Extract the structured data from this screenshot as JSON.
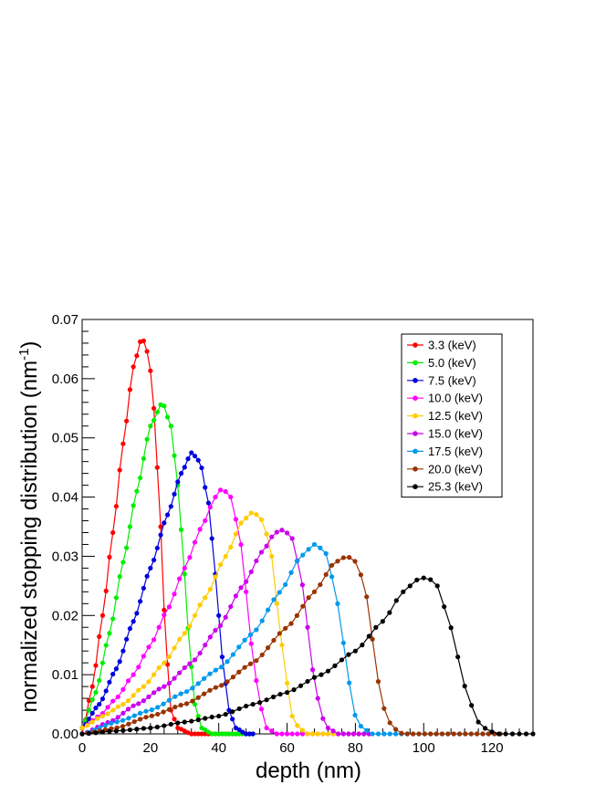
{
  "chart_data": {
    "type": "line",
    "title": "",
    "xlabel": "depth (nm)",
    "ylabel_main": "normalized stopping distribution (nm",
    "ylabel_sup": "-1",
    "ylabel_close": ")",
    "xlim": [
      0,
      132
    ],
    "ylim": [
      0,
      0.07
    ],
    "x_ticks": [
      0,
      20,
      40,
      60,
      80,
      100,
      120
    ],
    "y_ticks": [
      0,
      0.01,
      0.02,
      0.03,
      0.04,
      0.05,
      0.06,
      0.07
    ],
    "y_tick_labels": [
      "0.00",
      "0.01",
      "0.02",
      "0.03",
      "0.04",
      "0.05",
      "0.06",
      "0.07"
    ],
    "grid": false,
    "legend_position": "top-right",
    "series": [
      {
        "name": "3.3 (keV)",
        "color": "#ff0000",
        "peak_x": 17.5,
        "peak_y": 0.067,
        "x_min": 0,
        "x_max": 50,
        "step": 1,
        "points": [
          [
            0,
            0
          ],
          [
            3,
            0.008
          ],
          [
            6,
            0.02
          ],
          [
            9,
            0.034
          ],
          [
            12,
            0.049
          ],
          [
            15,
            0.062
          ],
          [
            17.5,
            0.067
          ],
          [
            19.5,
            0.064
          ],
          [
            21,
            0.055
          ],
          [
            23,
            0.035
          ],
          [
            24.5,
            0.015
          ],
          [
            26,
            0.004
          ],
          [
            28,
            0.001
          ],
          [
            32,
            0
          ],
          [
            50,
            0
          ]
        ]
      },
      {
        "name": "5.0 (keV)",
        "color": "#00ee00",
        "peak_x": 23.5,
        "peak_y": 0.056,
        "x_min": 0,
        "x_max": 50,
        "step": 1,
        "points": [
          [
            0,
            0.001
          ],
          [
            4,
            0.007
          ],
          [
            8,
            0.017
          ],
          [
            12,
            0.029
          ],
          [
            16,
            0.041
          ],
          [
            20,
            0.052
          ],
          [
            23.5,
            0.056
          ],
          [
            26,
            0.052
          ],
          [
            28,
            0.042
          ],
          [
            30,
            0.027
          ],
          [
            31.5,
            0.014
          ],
          [
            33,
            0.005
          ],
          [
            35,
            0.001
          ],
          [
            38,
            0
          ],
          [
            50,
            0
          ]
        ]
      },
      {
        "name": "7.5 (keV)",
        "color": "#0000dd",
        "peak_x": 32,
        "peak_y": 0.0475,
        "x_min": 0,
        "x_max": 50,
        "step": 1,
        "points": [
          [
            0,
            0.001
          ],
          [
            5,
            0.005
          ],
          [
            10,
            0.011
          ],
          [
            15,
            0.019
          ],
          [
            20,
            0.028
          ],
          [
            25,
            0.037
          ],
          [
            29,
            0.044
          ],
          [
            32,
            0.0475
          ],
          [
            34.5,
            0.046
          ],
          [
            37,
            0.039
          ],
          [
            39,
            0.027
          ],
          [
            41,
            0.013
          ],
          [
            43,
            0.004
          ],
          [
            45,
            0.001
          ],
          [
            48,
            0
          ],
          [
            50,
            0
          ]
        ]
      },
      {
        "name": "10.0 (keV)",
        "color": "#ff00ff",
        "peak_x": 41,
        "peak_y": 0.0415,
        "x_min": 0,
        "x_max": 85,
        "step": 1.5,
        "points": [
          [
            0,
            0.001
          ],
          [
            5,
            0.003
          ],
          [
            10,
            0.006
          ],
          [
            15,
            0.01
          ],
          [
            20,
            0.015
          ],
          [
            25,
            0.021
          ],
          [
            30,
            0.028
          ],
          [
            35,
            0.035
          ],
          [
            39,
            0.04
          ],
          [
            41,
            0.0415
          ],
          [
            43.5,
            0.04
          ],
          [
            46,
            0.034
          ],
          [
            48,
            0.024
          ],
          [
            50,
            0.013
          ],
          [
            52,
            0.005
          ],
          [
            54,
            0.001
          ],
          [
            57,
            0
          ],
          [
            85,
            0
          ]
        ]
      },
      {
        "name": "12.5 (keV)",
        "color": "#ffcc00",
        "peak_x": 50,
        "peak_y": 0.0375,
        "x_min": 0,
        "x_max": 85,
        "step": 1.5,
        "points": [
          [
            0,
            0.001
          ],
          [
            6,
            0.003
          ],
          [
            12,
            0.005
          ],
          [
            18,
            0.008
          ],
          [
            24,
            0.012
          ],
          [
            30,
            0.017
          ],
          [
            36,
            0.023
          ],
          [
            42,
            0.03
          ],
          [
            47,
            0.036
          ],
          [
            50,
            0.0375
          ],
          [
            53,
            0.036
          ],
          [
            55.5,
            0.03
          ],
          [
            57.5,
            0.02
          ],
          [
            59.5,
            0.01
          ],
          [
            61.5,
            0.003
          ],
          [
            63.5,
            0.001
          ],
          [
            66,
            0
          ],
          [
            85,
            0
          ]
        ]
      },
      {
        "name": "15.0 (keV)",
        "color": "#cc00ee",
        "peak_x": 59,
        "peak_y": 0.0345,
        "x_min": 0,
        "x_max": 85,
        "step": 1.5,
        "points": [
          [
            0,
            0
          ],
          [
            8,
            0.002
          ],
          [
            16,
            0.005
          ],
          [
            24,
            0.008
          ],
          [
            32,
            0.012
          ],
          [
            40,
            0.018
          ],
          [
            47,
            0.025
          ],
          [
            53,
            0.031
          ],
          [
            56.5,
            0.034
          ],
          [
            59,
            0.0345
          ],
          [
            61.5,
            0.033
          ],
          [
            64,
            0.027
          ],
          [
            66,
            0.018
          ],
          [
            68,
            0.009
          ],
          [
            70,
            0.003
          ],
          [
            72,
            0.001
          ],
          [
            75,
            0
          ],
          [
            85,
            0
          ]
        ]
      },
      {
        "name": "17.5 (keV)",
        "color": "#0099ee",
        "peak_x": 68,
        "peak_y": 0.032,
        "x_min": 0,
        "x_max": 123,
        "step": 1.7,
        "points": [
          [
            0,
            0
          ],
          [
            10,
            0.002
          ],
          [
            20,
            0.004
          ],
          [
            30,
            0.007
          ],
          [
            40,
            0.011
          ],
          [
            50,
            0.017
          ],
          [
            58,
            0.024
          ],
          [
            64,
            0.03
          ],
          [
            68,
            0.032
          ],
          [
            71,
            0.031
          ],
          [
            74,
            0.025
          ],
          [
            76,
            0.017
          ],
          [
            78,
            0.009
          ],
          [
            80,
            0.003
          ],
          [
            82,
            0.001
          ],
          [
            85,
            0
          ],
          [
            123,
            0
          ]
        ]
      },
      {
        "name": "20.0 (keV)",
        "color": "#993300",
        "peak_x": 77.5,
        "peak_y": 0.03,
        "x_min": 0,
        "x_max": 123,
        "step": 1.7,
        "points": [
          [
            0,
            0
          ],
          [
            10,
            0.001
          ],
          [
            20,
            0.003
          ],
          [
            30,
            0.005
          ],
          [
            40,
            0.008
          ],
          [
            50,
            0.012
          ],
          [
            60,
            0.018
          ],
          [
            68,
            0.024
          ],
          [
            74,
            0.029
          ],
          [
            77.5,
            0.03
          ],
          [
            80.5,
            0.029
          ],
          [
            83,
            0.024
          ],
          [
            85,
            0.016
          ],
          [
            87,
            0.008
          ],
          [
            89,
            0.003
          ],
          [
            91,
            0.001
          ],
          [
            94,
            0
          ],
          [
            123,
            0
          ]
        ]
      },
      {
        "name": "25.3 (keV)",
        "color": "#000000",
        "peak_x": 101,
        "peak_y": 0.0265,
        "x_min": 0,
        "x_max": 132,
        "step": 2,
        "points": [
          [
            0,
            0
          ],
          [
            10,
            0.0005
          ],
          [
            20,
            0.001
          ],
          [
            30,
            0.002
          ],
          [
            40,
            0.003
          ],
          [
            50,
            0.005
          ],
          [
            60,
            0.007
          ],
          [
            70,
            0.01
          ],
          [
            80,
            0.014
          ],
          [
            88,
            0.019
          ],
          [
            94,
            0.024
          ],
          [
            98,
            0.026
          ],
          [
            101,
            0.0265
          ],
          [
            104,
            0.025
          ],
          [
            107,
            0.02
          ],
          [
            110,
            0.013
          ],
          [
            113,
            0.006
          ],
          [
            116,
            0.002
          ],
          [
            119,
            0.0005
          ],
          [
            122,
            0
          ],
          [
            132,
            0
          ]
        ]
      }
    ]
  }
}
